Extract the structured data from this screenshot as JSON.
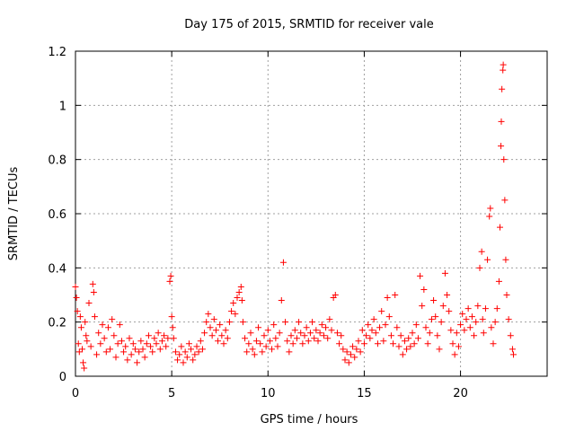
{
  "chart_data": {
    "type": "scatter",
    "title": "Day 175 of 2015, SRMTID for receiver vale",
    "xlabel": "GPS time / hours",
    "ylabel": "SRMTID / TECUs",
    "xlim": [
      0,
      24.5
    ],
    "ylim": [
      0,
      1.2
    ],
    "xticks": [
      "0",
      "5",
      "10",
      "15",
      "20"
    ],
    "xtick_values": [
      0,
      5,
      10,
      15,
      20
    ],
    "yticks": [
      "0",
      "0.2",
      "0.4",
      "0.6",
      "0.8",
      "1",
      "1.2"
    ],
    "ytick_values": [
      0,
      0.2,
      0.4,
      0.6,
      0.8,
      1.0,
      1.2
    ],
    "grid": true,
    "marker": "+",
    "color": "#ff0000",
    "series": [
      {
        "name": "SRMTID",
        "points": [
          [
            0.0,
            0.33
          ],
          [
            0.05,
            0.29
          ],
          [
            0.1,
            0.24
          ],
          [
            0.15,
            0.12
          ],
          [
            0.2,
            0.09
          ],
          [
            0.25,
            0.22
          ],
          [
            0.3,
            0.18
          ],
          [
            0.35,
            0.1
          ],
          [
            0.4,
            0.05
          ],
          [
            0.45,
            0.03
          ],
          [
            0.5,
            0.2
          ],
          [
            0.55,
            0.15
          ],
          [
            0.6,
            0.13
          ],
          [
            0.7,
            0.27
          ],
          [
            0.8,
            0.11
          ],
          [
            0.9,
            0.34
          ],
          [
            0.95,
            0.31
          ],
          [
            1.0,
            0.22
          ],
          [
            1.1,
            0.08
          ],
          [
            1.2,
            0.16
          ],
          [
            1.3,
            0.12
          ],
          [
            1.4,
            0.19
          ],
          [
            1.5,
            0.14
          ],
          [
            1.6,
            0.09
          ],
          [
            1.7,
            0.18
          ],
          [
            1.8,
            0.1
          ],
          [
            1.9,
            0.21
          ],
          [
            2.0,
            0.15
          ],
          [
            2.1,
            0.07
          ],
          [
            2.2,
            0.12
          ],
          [
            2.3,
            0.19
          ],
          [
            2.4,
            0.13
          ],
          [
            2.5,
            0.09
          ],
          [
            2.6,
            0.11
          ],
          [
            2.7,
            0.06
          ],
          [
            2.8,
            0.14
          ],
          [
            2.9,
            0.08
          ],
          [
            3.0,
            0.12
          ],
          [
            3.1,
            0.1
          ],
          [
            3.2,
            0.05
          ],
          [
            3.3,
            0.09
          ],
          [
            3.4,
            0.13
          ],
          [
            3.5,
            0.1
          ],
          [
            3.6,
            0.07
          ],
          [
            3.7,
            0.12
          ],
          [
            3.8,
            0.15
          ],
          [
            3.9,
            0.11
          ],
          [
            4.0,
            0.09
          ],
          [
            4.1,
            0.14
          ],
          [
            4.2,
            0.12
          ],
          [
            4.3,
            0.16
          ],
          [
            4.4,
            0.1
          ],
          [
            4.5,
            0.13
          ],
          [
            4.6,
            0.15
          ],
          [
            4.7,
            0.11
          ],
          [
            4.8,
            0.14
          ],
          [
            4.9,
            0.35
          ],
          [
            4.95,
            0.37
          ],
          [
            5.0,
            0.22
          ],
          [
            5.05,
            0.18
          ],
          [
            5.1,
            0.14
          ],
          [
            5.2,
            0.09
          ],
          [
            5.3,
            0.06
          ],
          [
            5.4,
            0.08
          ],
          [
            5.5,
            0.11
          ],
          [
            5.6,
            0.05
          ],
          [
            5.7,
            0.09
          ],
          [
            5.8,
            0.07
          ],
          [
            5.9,
            0.12
          ],
          [
            6.0,
            0.1
          ],
          [
            6.1,
            0.06
          ],
          [
            6.2,
            0.08
          ],
          [
            6.3,
            0.11
          ],
          [
            6.4,
            0.09
          ],
          [
            6.5,
            0.13
          ],
          [
            6.6,
            0.1
          ],
          [
            6.7,
            0.16
          ],
          [
            6.8,
            0.2
          ],
          [
            6.9,
            0.23
          ],
          [
            7.0,
            0.18
          ],
          [
            7.1,
            0.15
          ],
          [
            7.2,
            0.21
          ],
          [
            7.3,
            0.17
          ],
          [
            7.4,
            0.13
          ],
          [
            7.5,
            0.19
          ],
          [
            7.6,
            0.15
          ],
          [
            7.7,
            0.12
          ],
          [
            7.8,
            0.17
          ],
          [
            7.9,
            0.14
          ],
          [
            8.0,
            0.2
          ],
          [
            8.1,
            0.24
          ],
          [
            8.2,
            0.27
          ],
          [
            8.3,
            0.23
          ],
          [
            8.4,
            0.29
          ],
          [
            8.5,
            0.31
          ],
          [
            8.6,
            0.33
          ],
          [
            8.65,
            0.28
          ],
          [
            8.7,
            0.2
          ],
          [
            8.8,
            0.14
          ],
          [
            8.9,
            0.09
          ],
          [
            9.0,
            0.12
          ],
          [
            9.1,
            0.16
          ],
          [
            9.2,
            0.1
          ],
          [
            9.3,
            0.08
          ],
          [
            9.4,
            0.13
          ],
          [
            9.5,
            0.18
          ],
          [
            9.6,
            0.12
          ],
          [
            9.7,
            0.09
          ],
          [
            9.8,
            0.15
          ],
          [
            9.9,
            0.11
          ],
          [
            10.0,
            0.17
          ],
          [
            10.1,
            0.13
          ],
          [
            10.2,
            0.1
          ],
          [
            10.3,
            0.19
          ],
          [
            10.4,
            0.14
          ],
          [
            10.5,
            0.11
          ],
          [
            10.6,
            0.16
          ],
          [
            10.7,
            0.28
          ],
          [
            10.8,
            0.42
          ],
          [
            10.9,
            0.2
          ],
          [
            11.0,
            0.13
          ],
          [
            11.1,
            0.09
          ],
          [
            11.2,
            0.15
          ],
          [
            11.3,
            0.12
          ],
          [
            11.4,
            0.17
          ],
          [
            11.5,
            0.14
          ],
          [
            11.6,
            0.2
          ],
          [
            11.7,
            0.16
          ],
          [
            11.8,
            0.12
          ],
          [
            11.9,
            0.15
          ],
          [
            12.0,
            0.18
          ],
          [
            12.1,
            0.13
          ],
          [
            12.2,
            0.16
          ],
          [
            12.3,
            0.2
          ],
          [
            12.4,
            0.14
          ],
          [
            12.5,
            0.17
          ],
          [
            12.6,
            0.13
          ],
          [
            12.7,
            0.16
          ],
          [
            12.8,
            0.19
          ],
          [
            12.9,
            0.15
          ],
          [
            13.0,
            0.18
          ],
          [
            13.1,
            0.14
          ],
          [
            13.2,
            0.21
          ],
          [
            13.3,
            0.17
          ],
          [
            13.4,
            0.29
          ],
          [
            13.5,
            0.3
          ],
          [
            13.6,
            0.16
          ],
          [
            13.7,
            0.12
          ],
          [
            13.8,
            0.15
          ],
          [
            13.9,
            0.1
          ],
          [
            14.0,
            0.06
          ],
          [
            14.1,
            0.09
          ],
          [
            14.2,
            0.05
          ],
          [
            14.3,
            0.08
          ],
          [
            14.4,
            0.11
          ],
          [
            14.5,
            0.07
          ],
          [
            14.6,
            0.1
          ],
          [
            14.7,
            0.13
          ],
          [
            14.8,
            0.09
          ],
          [
            14.9,
            0.17
          ],
          [
            15.0,
            0.12
          ],
          [
            15.1,
            0.15
          ],
          [
            15.2,
            0.19
          ],
          [
            15.3,
            0.14
          ],
          [
            15.4,
            0.17
          ],
          [
            15.5,
            0.21
          ],
          [
            15.6,
            0.16
          ],
          [
            15.7,
            0.12
          ],
          [
            15.8,
            0.18
          ],
          [
            15.9,
            0.24
          ],
          [
            16.0,
            0.13
          ],
          [
            16.1,
            0.19
          ],
          [
            16.2,
            0.29
          ],
          [
            16.3,
            0.22
          ],
          [
            16.4,
            0.15
          ],
          [
            16.5,
            0.12
          ],
          [
            16.6,
            0.3
          ],
          [
            16.7,
            0.18
          ],
          [
            16.8,
            0.11
          ],
          [
            16.9,
            0.15
          ],
          [
            17.0,
            0.08
          ],
          [
            17.1,
            0.13
          ],
          [
            17.2,
            0.1
          ],
          [
            17.3,
            0.14
          ],
          [
            17.4,
            0.11
          ],
          [
            17.5,
            0.16
          ],
          [
            17.6,
            0.12
          ],
          [
            17.7,
            0.19
          ],
          [
            17.8,
            0.14
          ],
          [
            17.9,
            0.37
          ],
          [
            18.0,
            0.26
          ],
          [
            18.1,
            0.32
          ],
          [
            18.2,
            0.18
          ],
          [
            18.3,
            0.12
          ],
          [
            18.4,
            0.16
          ],
          [
            18.5,
            0.21
          ],
          [
            18.6,
            0.28
          ],
          [
            18.7,
            0.22
          ],
          [
            18.8,
            0.15
          ],
          [
            18.9,
            0.1
          ],
          [
            19.0,
            0.2
          ],
          [
            19.1,
            0.26
          ],
          [
            19.2,
            0.38
          ],
          [
            19.3,
            0.3
          ],
          [
            19.4,
            0.24
          ],
          [
            19.5,
            0.17
          ],
          [
            19.6,
            0.12
          ],
          [
            19.7,
            0.08
          ],
          [
            19.8,
            0.16
          ],
          [
            19.9,
            0.11
          ],
          [
            20.0,
            0.19
          ],
          [
            20.1,
            0.23
          ],
          [
            20.2,
            0.17
          ],
          [
            20.3,
            0.21
          ],
          [
            20.4,
            0.25
          ],
          [
            20.5,
            0.18
          ],
          [
            20.6,
            0.22
          ],
          [
            20.7,
            0.15
          ],
          [
            20.8,
            0.2
          ],
          [
            20.9,
            0.26
          ],
          [
            21.0,
            0.4
          ],
          [
            21.1,
            0.46
          ],
          [
            21.15,
            0.21
          ],
          [
            21.2,
            0.16
          ],
          [
            21.3,
            0.25
          ],
          [
            21.4,
            0.43
          ],
          [
            21.5,
            0.59
          ],
          [
            21.55,
            0.62
          ],
          [
            21.6,
            0.18
          ],
          [
            21.7,
            0.12
          ],
          [
            21.8,
            0.2
          ],
          [
            21.9,
            0.25
          ],
          [
            22.0,
            0.35
          ],
          [
            22.05,
            0.55
          ],
          [
            22.1,
            0.85
          ],
          [
            22.12,
            0.94
          ],
          [
            22.15,
            1.06
          ],
          [
            22.2,
            1.13
          ],
          [
            22.22,
            1.15
          ],
          [
            22.25,
            0.8
          ],
          [
            22.3,
            0.65
          ],
          [
            22.35,
            0.43
          ],
          [
            22.4,
            0.3
          ],
          [
            22.5,
            0.21
          ],
          [
            22.6,
            0.15
          ],
          [
            22.7,
            0.1
          ],
          [
            22.75,
            0.08
          ]
        ]
      }
    ]
  }
}
